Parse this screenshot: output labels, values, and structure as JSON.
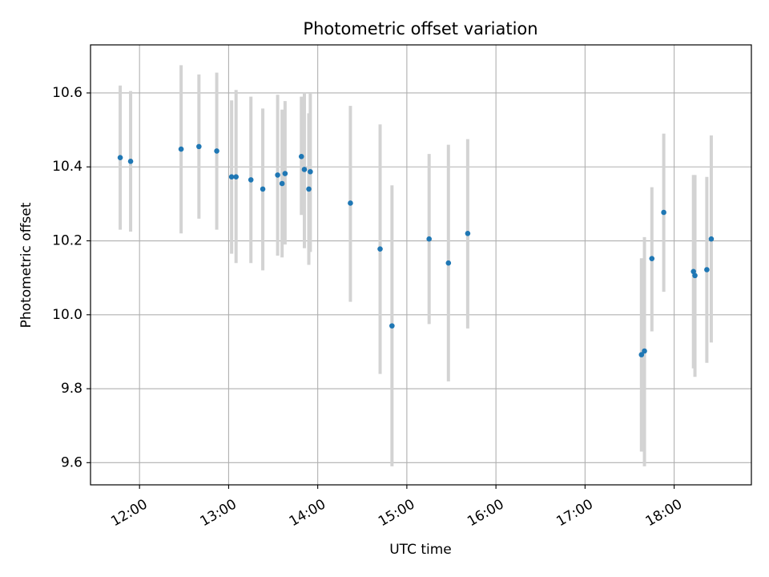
{
  "chart_data": {
    "type": "scatter",
    "title": "Photometric offset variation",
    "xlabel": "UTC time",
    "ylabel": "Photometric offset",
    "x_unit": "UTC time (HH:MM)",
    "xlim": [
      "11:27",
      "18:52"
    ],
    "ylim": [
      9.54,
      10.73
    ],
    "x_ticks": [
      "12:00",
      "13:00",
      "14:00",
      "15:00",
      "16:00",
      "17:00",
      "18:00"
    ],
    "y_ticks": [
      "9.6",
      "9.8",
      "10.0",
      "10.2",
      "10.4",
      "10.6"
    ],
    "grid": true,
    "colors": {
      "points": "#1f77b4",
      "error_bars": "#d3d3d3",
      "grid": "#b0b0b0"
    },
    "points": [
      {
        "x": "11:47",
        "y": 10.425,
        "y_low": 10.23,
        "y_high": 10.62
      },
      {
        "x": "11:54",
        "y": 10.415,
        "y_low": 10.225,
        "y_high": 10.605
      },
      {
        "x": "12:28",
        "y": 10.448,
        "y_low": 10.22,
        "y_high": 10.675
      },
      {
        "x": "12:40",
        "y": 10.455,
        "y_low": 10.26,
        "y_high": 10.65
      },
      {
        "x": "12:52",
        "y": 10.443,
        "y_low": 10.23,
        "y_high": 10.655
      },
      {
        "x": "13:02",
        "y": 10.373,
        "y_low": 10.165,
        "y_high": 10.58
      },
      {
        "x": "13:05",
        "y": 10.373,
        "y_low": 10.14,
        "y_high": 10.608
      },
      {
        "x": "13:15",
        "y": 10.365,
        "y_low": 10.14,
        "y_high": 10.59
      },
      {
        "x": "13:23",
        "y": 10.34,
        "y_low": 10.12,
        "y_high": 10.558
      },
      {
        "x": "13:33",
        "y": 10.378,
        "y_low": 10.16,
        "y_high": 10.595
      },
      {
        "x": "13:36",
        "y": 10.355,
        "y_low": 10.155,
        "y_high": 10.555
      },
      {
        "x": "13:38",
        "y": 10.382,
        "y_low": 10.19,
        "y_high": 10.578
      },
      {
        "x": "13:49",
        "y": 10.428,
        "y_low": 10.27,
        "y_high": 10.59
      },
      {
        "x": "13:51",
        "y": 10.393,
        "y_low": 10.18,
        "y_high": 10.602
      },
      {
        "x": "13:54",
        "y": 10.34,
        "y_low": 10.135,
        "y_high": 10.545
      },
      {
        "x": "13:55",
        "y": 10.387,
        "y_low": 10.17,
        "y_high": 10.6
      },
      {
        "x": "14:22",
        "y": 10.302,
        "y_low": 10.035,
        "y_high": 10.565
      },
      {
        "x": "14:42",
        "y": 10.178,
        "y_low": 9.84,
        "y_high": 10.515
      },
      {
        "x": "14:50",
        "y": 9.97,
        "y_low": 9.59,
        "y_high": 10.35
      },
      {
        "x": "15:15",
        "y": 10.205,
        "y_low": 9.975,
        "y_high": 10.435
      },
      {
        "x": "15:28",
        "y": 10.14,
        "y_low": 9.82,
        "y_high": 10.46
      },
      {
        "x": "15:41",
        "y": 10.22,
        "y_low": 9.963,
        "y_high": 10.475
      },
      {
        "x": "17:38",
        "y": 9.892,
        "y_low": 9.63,
        "y_high": 10.153
      },
      {
        "x": "17:40",
        "y": 9.902,
        "y_low": 9.59,
        "y_high": 10.21
      },
      {
        "x": "17:45",
        "y": 10.152,
        "y_low": 9.955,
        "y_high": 10.345
      },
      {
        "x": "17:53",
        "y": 10.277,
        "y_low": 10.062,
        "y_high": 10.49
      },
      {
        "x": "18:13",
        "y": 10.117,
        "y_low": 9.855,
        "y_high": 10.378
      },
      {
        "x": "18:14",
        "y": 10.106,
        "y_low": 9.832,
        "y_high": 10.378
      },
      {
        "x": "18:22",
        "y": 10.122,
        "y_low": 9.87,
        "y_high": 10.373
      },
      {
        "x": "18:25",
        "y": 10.205,
        "y_low": 9.925,
        "y_high": 10.485
      }
    ]
  }
}
